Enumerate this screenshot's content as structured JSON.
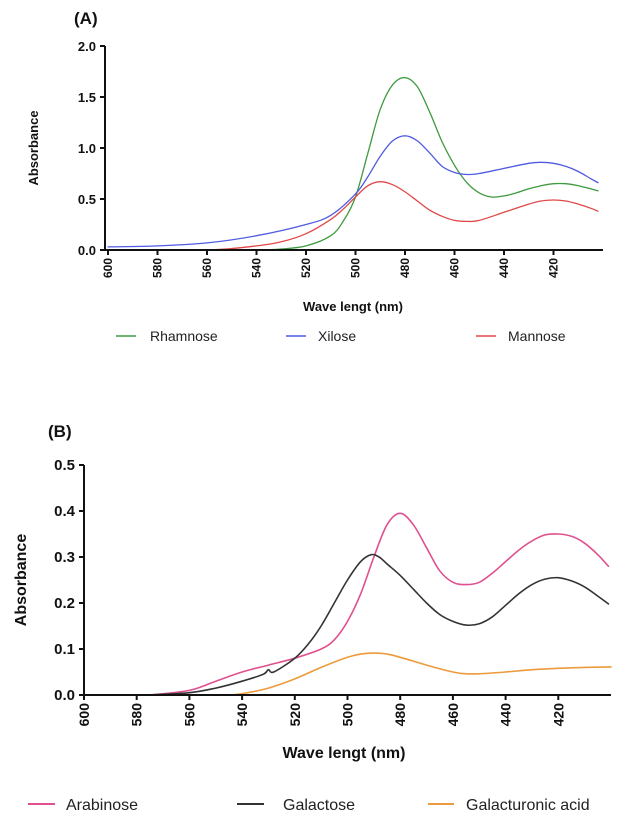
{
  "chart_data": [
    {
      "panel_label": "(A)",
      "type": "line",
      "xlabel": "Wave lengt (nm)",
      "ylabel": "Absorbance",
      "xlim": [
        600,
        400
      ],
      "ylim": [
        0,
        2.0
      ],
      "x_ticks": [
        "600",
        "580",
        "560",
        "540",
        "520",
        "500",
        "480",
        "460",
        "440",
        "420"
      ],
      "y_ticks": [
        "0.0",
        "0.5",
        "1.0",
        "1.5",
        "2.0"
      ],
      "x_reversed": true,
      "grid": false,
      "legend_position": "bottom",
      "series": [
        {
          "name": "Rhamnose",
          "color": "#3f9a3f",
          "x": [
            600,
            560,
            540,
            530,
            520,
            510,
            505,
            500,
            495,
            490,
            485,
            480,
            475,
            470,
            465,
            460,
            455,
            450,
            445,
            440,
            435,
            430,
            425,
            420,
            415,
            410,
            405,
            402
          ],
          "y": [
            0.0,
            0.0,
            0.0,
            0.01,
            0.04,
            0.14,
            0.28,
            0.52,
            0.95,
            1.38,
            1.62,
            1.69,
            1.6,
            1.35,
            1.06,
            0.83,
            0.66,
            0.56,
            0.52,
            0.53,
            0.56,
            0.6,
            0.63,
            0.65,
            0.65,
            0.63,
            0.6,
            0.58
          ]
        },
        {
          "name": "Xilose",
          "color": "#4f5be0",
          "x": [
            600,
            580,
            560,
            540,
            520,
            510,
            500,
            495,
            490,
            485,
            480,
            475,
            470,
            465,
            460,
            455,
            450,
            440,
            430,
            425,
            420,
            415,
            410,
            405,
            402
          ],
          "y": [
            0.03,
            0.04,
            0.07,
            0.14,
            0.25,
            0.34,
            0.55,
            0.72,
            0.92,
            1.07,
            1.12,
            1.07,
            0.95,
            0.82,
            0.76,
            0.74,
            0.75,
            0.8,
            0.85,
            0.86,
            0.85,
            0.82,
            0.77,
            0.7,
            0.66
          ]
        },
        {
          "name": "Mannose",
          "color": "#e04848",
          "x": [
            600,
            560,
            540,
            530,
            520,
            510,
            505,
            500,
            495,
            490,
            485,
            480,
            475,
            470,
            465,
            460,
            455,
            450,
            440,
            430,
            425,
            420,
            415,
            410,
            405,
            402
          ],
          "y": [
            0.0,
            0.0,
            0.04,
            0.08,
            0.16,
            0.3,
            0.4,
            0.52,
            0.63,
            0.67,
            0.64,
            0.57,
            0.48,
            0.39,
            0.33,
            0.29,
            0.28,
            0.29,
            0.37,
            0.45,
            0.48,
            0.49,
            0.48,
            0.45,
            0.41,
            0.38
          ]
        }
      ]
    },
    {
      "panel_label": "(B)",
      "type": "line",
      "xlabel": "Wave lengt (nm)",
      "ylabel": "Absorbance",
      "xlim": [
        600,
        400
      ],
      "ylim": [
        0,
        0.5
      ],
      "x_ticks": [
        "600",
        "580",
        "560",
        "540",
        "520",
        "500",
        "480",
        "460",
        "440",
        "420"
      ],
      "y_ticks": [
        "0.0",
        "0.1",
        "0.2",
        "0.3",
        "0.4",
        "0.5"
      ],
      "x_reversed": true,
      "grid": false,
      "legend_position": "bottom",
      "series": [
        {
          "name": "Arabinose",
          "color": "#e0508f",
          "x": [
            575,
            560,
            550,
            540,
            530,
            520,
            510,
            505,
            500,
            495,
            490,
            485,
            480,
            475,
            470,
            465,
            460,
            455,
            450,
            445,
            440,
            435,
            430,
            425,
            420,
            415,
            410,
            405,
            401
          ],
          "y": [
            0.0,
            0.01,
            0.03,
            0.05,
            0.065,
            0.08,
            0.1,
            0.12,
            0.16,
            0.22,
            0.3,
            0.37,
            0.395,
            0.37,
            0.32,
            0.27,
            0.245,
            0.24,
            0.245,
            0.265,
            0.29,
            0.315,
            0.335,
            0.348,
            0.35,
            0.345,
            0.33,
            0.305,
            0.28
          ]
        },
        {
          "name": "Galactose",
          "color": "#333333",
          "x": [
            575,
            560,
            550,
            540,
            532,
            530,
            528,
            520,
            515,
            510,
            505,
            500,
            495,
            491,
            488,
            485,
            480,
            475,
            470,
            465,
            460,
            455,
            450,
            445,
            440,
            435,
            430,
            425,
            420,
            415,
            410,
            405,
            401
          ],
          "y": [
            0.0,
            0.005,
            0.015,
            0.03,
            0.045,
            0.055,
            0.05,
            0.08,
            0.11,
            0.15,
            0.2,
            0.25,
            0.29,
            0.305,
            0.3,
            0.285,
            0.26,
            0.23,
            0.2,
            0.175,
            0.16,
            0.152,
            0.155,
            0.17,
            0.195,
            0.22,
            0.24,
            0.252,
            0.255,
            0.248,
            0.235,
            0.215,
            0.198
          ]
        },
        {
          "name": "Galacturonic acid",
          "color": "#ec9a3c",
          "x": [
            545,
            540,
            530,
            520,
            510,
            500,
            495,
            490,
            485,
            480,
            470,
            460,
            455,
            450,
            440,
            430,
            420,
            410,
            400
          ],
          "y": [
            0.0,
            0.003,
            0.015,
            0.035,
            0.06,
            0.082,
            0.089,
            0.091,
            0.089,
            0.082,
            0.065,
            0.05,
            0.046,
            0.046,
            0.05,
            0.055,
            0.058,
            0.06,
            0.061
          ]
        }
      ]
    }
  ]
}
